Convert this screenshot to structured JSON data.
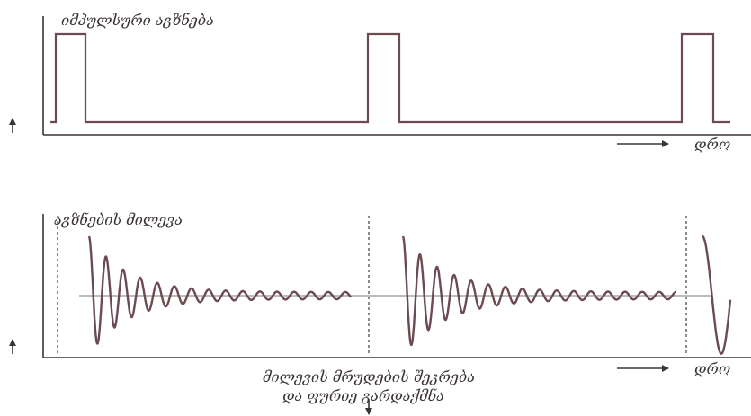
{
  "top_panel": {
    "title": "იმპულსური აგზნება",
    "x_label": "დრო"
  },
  "bottom_panel": {
    "title": "აგზნების მილევა",
    "x_label": "დრო",
    "caption_line1": "მილევის მრუდების შეკრება",
    "caption_line2": "და ფურიე გარდაქმნა"
  },
  "colors": {
    "waveform": "#6b4a50",
    "axis": "#3b3437",
    "guide": "#5a5a5a",
    "background": "#ffffff"
  }
}
